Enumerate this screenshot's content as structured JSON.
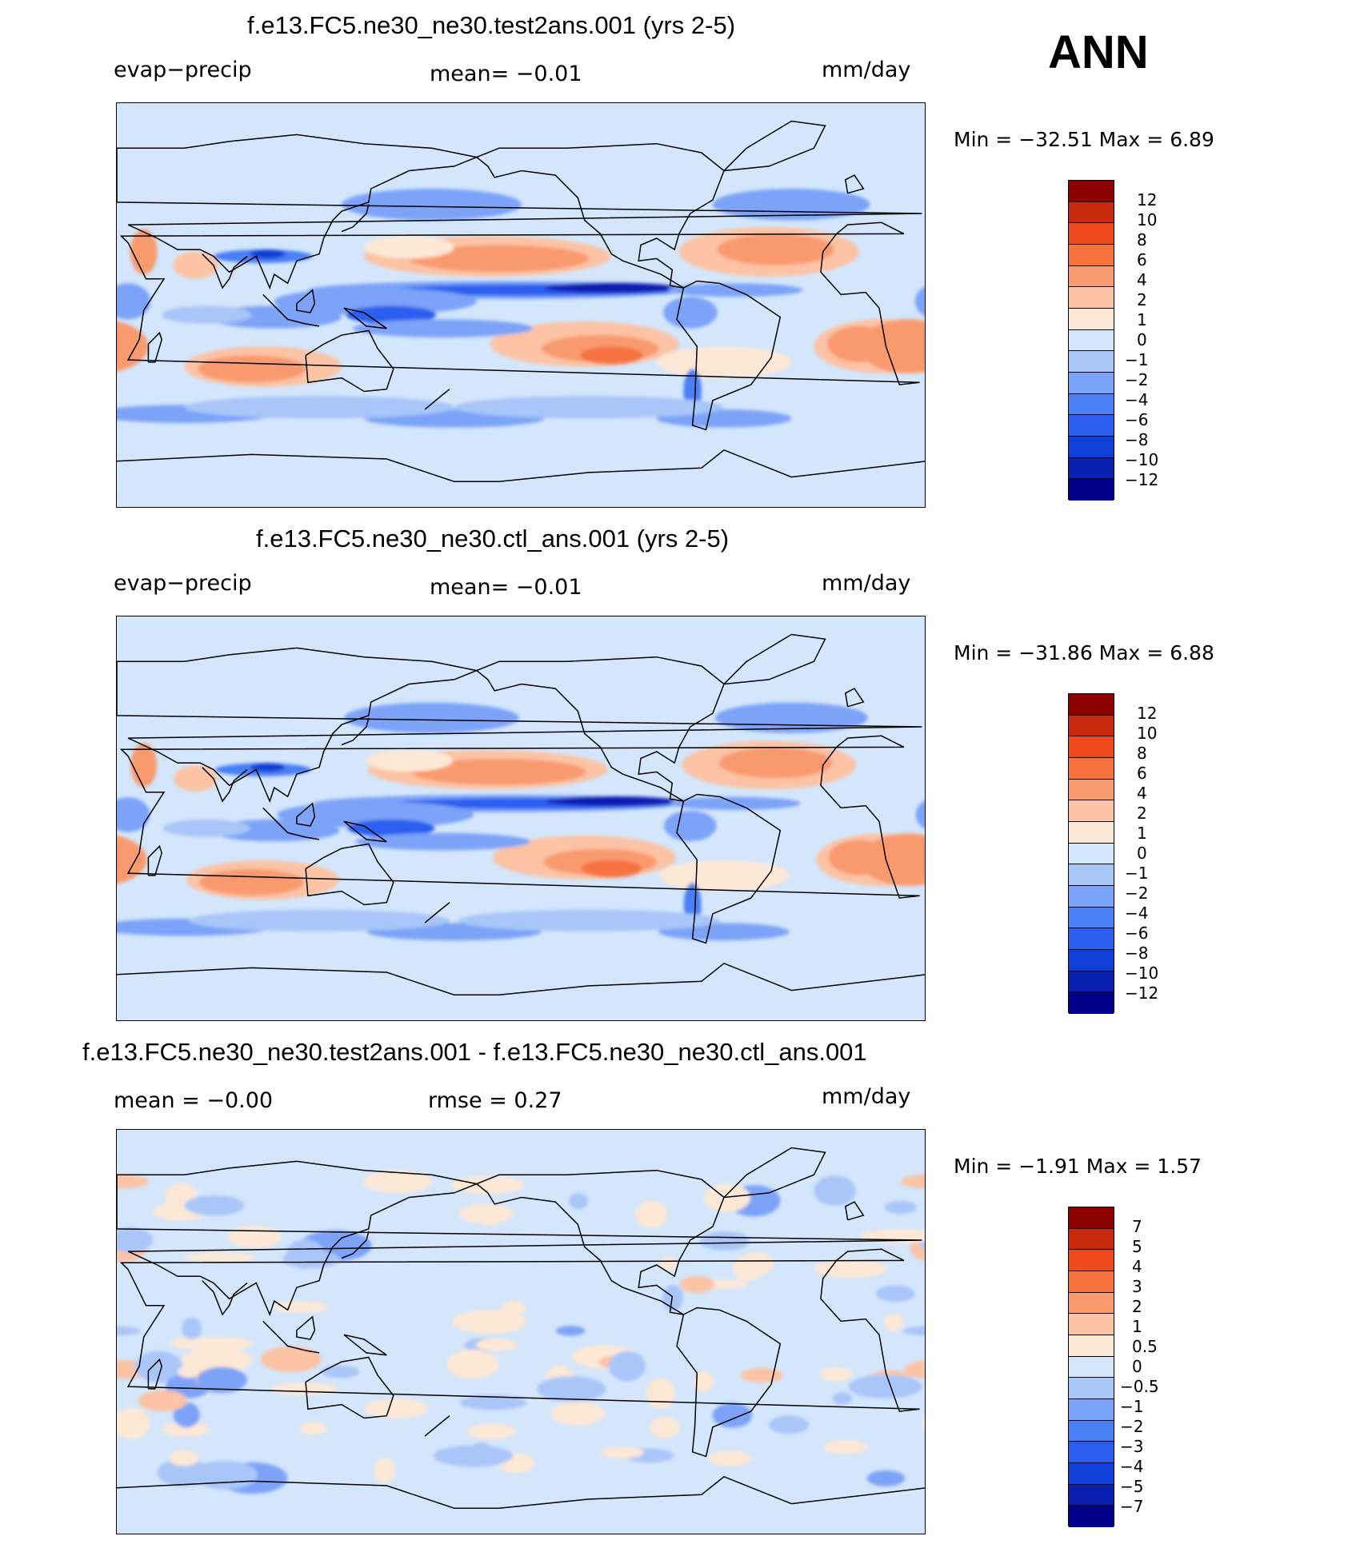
{
  "header": {
    "season": "ANN"
  },
  "panels": [
    {
      "title": "f.e13.FC5.ne30_ne30.test2ans.001 (yrs 2-5)",
      "left": "evap−precip",
      "middle": "mean=   −0.01",
      "units": "mm/day",
      "minmax": "Min  =  −32.51  Max  =    6.89",
      "levels": [
        "12",
        "10",
        "8",
        "6",
        "4",
        "2",
        "1",
        "0",
        "−1",
        "−2",
        "−4",
        "−6",
        "−8",
        "−10",
        "−12"
      ]
    },
    {
      "title": "f.e13.FC5.ne30_ne30.ctl_ans.001 (yrs 2-5)",
      "left": "evap−precip",
      "middle": "mean=   −0.01",
      "units": "mm/day",
      "minmax": "Min  =  −31.86  Max  =    6.88",
      "levels": [
        "12",
        "10",
        "8",
        "6",
        "4",
        "2",
        "1",
        "0",
        "−1",
        "−2",
        "−4",
        "−6",
        "−8",
        "−10",
        "−12"
      ]
    },
    {
      "title": "f.e13.FC5.ne30_ne30.test2ans.001 - f.e13.FC5.ne30_ne30.ctl_ans.001",
      "left": "mean  =    −0.00",
      "middle": "rmse  =     0.27",
      "units": "mm/day",
      "minmax": "Min  =    −1.91  Max  =    1.57",
      "levels": [
        "7",
        "5",
        "4",
        "3",
        "2",
        "1",
        "0.5",
        "0",
        "−0.5",
        "−1",
        "−2",
        "−3",
        "−4",
        "−5",
        "−7"
      ]
    }
  ],
  "chart_data": [
    {
      "type": "heatmap",
      "title": "f.e13.FC5.ne30_ne30.test2ans.001 (yrs 2-5)",
      "variable": "evap−precip",
      "units": "mm/day",
      "mean": -0.01,
      "min": -32.51,
      "max": 6.89,
      "contour_levels": [
        -12,
        -10,
        -8,
        -6,
        -4,
        -2,
        -1,
        0,
        1,
        2,
        4,
        6,
        8,
        10,
        12
      ],
      "colors": [
        "#00008b",
        "#0a1fb0",
        "#0f3fd6",
        "#2a5ef0",
        "#4a7ff5",
        "#7ba3f8",
        "#a9c6f9",
        "#d3e6fb",
        "#fde8d6",
        "#fcc3a4",
        "#f99a6e",
        "#f6723f",
        "#ef4a1d",
        "#c8290f",
        "#8b0000"
      ],
      "map_region": "global, 30E-390E, 90S-90N"
    },
    {
      "type": "heatmap",
      "title": "f.e13.FC5.ne30_ne30.ctl_ans.001 (yrs 2-5)",
      "variable": "evap−precip",
      "units": "mm/day",
      "mean": -0.01,
      "min": -31.86,
      "max": 6.88,
      "contour_levels": [
        -12,
        -10,
        -8,
        -6,
        -4,
        -2,
        -1,
        0,
        1,
        2,
        4,
        6,
        8,
        10,
        12
      ],
      "colors": [
        "#00008b",
        "#0a1fb0",
        "#0f3fd6",
        "#2a5ef0",
        "#4a7ff5",
        "#7ba3f8",
        "#a9c6f9",
        "#d3e6fb",
        "#fde8d6",
        "#fcc3a4",
        "#f99a6e",
        "#f6723f",
        "#ef4a1d",
        "#c8290f",
        "#8b0000"
      ],
      "map_region": "global, 30E-390E, 90S-90N"
    },
    {
      "type": "heatmap",
      "title": "f.e13.FC5.ne30_ne30.test2ans.001 - f.e13.FC5.ne30_ne30.ctl_ans.001",
      "units": "mm/day",
      "mean": -0.0,
      "rmse": 0.27,
      "min": -1.91,
      "max": 1.57,
      "contour_levels": [
        -7,
        -5,
        -4,
        -3,
        -2,
        -1,
        -0.5,
        0,
        0.5,
        1,
        2,
        3,
        4,
        5,
        7
      ],
      "colors": [
        "#00008b",
        "#0a1fb0",
        "#0f3fd6",
        "#2a5ef0",
        "#4a7ff5",
        "#7ba3f8",
        "#a9c6f9",
        "#d3e6fb",
        "#fde8d6",
        "#fcc3a4",
        "#f99a6e",
        "#f6723f",
        "#ef4a1d",
        "#c8290f",
        "#8b0000"
      ],
      "map_region": "global, 30E-390E, 90S-90N"
    }
  ]
}
